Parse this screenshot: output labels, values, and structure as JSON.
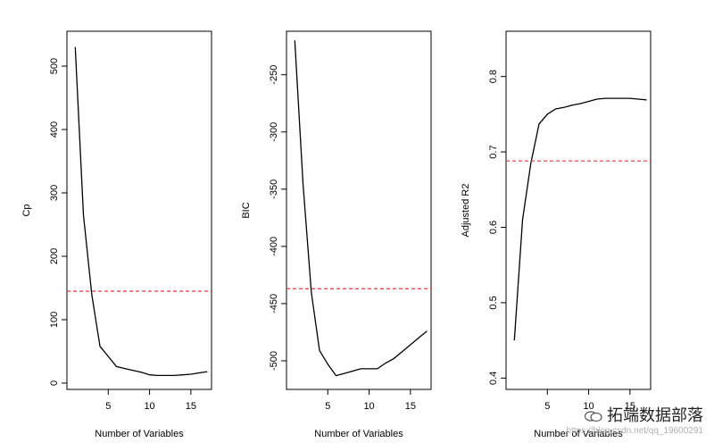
{
  "chart_data": [
    {
      "type": "line",
      "xlabel": "Number of Variables",
      "ylabel": "Cp",
      "xlim": [
        0,
        17.5
      ],
      "ylim": [
        -10,
        555
      ],
      "xticks": [
        5,
        10,
        15
      ],
      "yticks": [
        0,
        100,
        200,
        300,
        400,
        500
      ],
      "x": [
        1,
        2,
        3,
        4,
        5,
        6,
        7,
        8,
        9,
        10,
        11,
        12,
        13,
        14,
        15,
        16,
        17
      ],
      "values": [
        530,
        265,
        140,
        58,
        42,
        26,
        23,
        20,
        17,
        13,
        12,
        12,
        12,
        13,
        14,
        16,
        18
      ],
      "reference_line": {
        "y": 145,
        "style": "dashed",
        "color": "#e8343a"
      },
      "grid": false
    },
    {
      "type": "line",
      "xlabel": "Number of Variables",
      "ylabel": "BIC",
      "xlim": [
        0,
        17.5
      ],
      "ylim": [
        -525,
        -212
      ],
      "xticks": [
        5,
        10,
        15
      ],
      "yticks": [
        -500,
        -450,
        -400,
        -350,
        -300,
        -250
      ],
      "x": [
        1,
        2,
        3,
        4,
        5,
        6,
        7,
        8,
        9,
        10,
        11,
        12,
        13,
        14,
        15,
        16,
        17
      ],
      "values": [
        -220,
        -345,
        -440,
        -491,
        -503,
        -513,
        -511,
        -509,
        -507,
        -507,
        -507,
        -502,
        -498,
        -492,
        -486,
        -480,
        -474
      ],
      "reference_line": {
        "y": -437,
        "style": "dashed",
        "color": "#e8343a"
      },
      "grid": false
    },
    {
      "type": "line",
      "xlabel": "Number of Variables",
      "ylabel": "Adjusted R2",
      "xlim": [
        0,
        17.5
      ],
      "ylim": [
        0.385,
        0.86
      ],
      "xticks": [
        5,
        10,
        15
      ],
      "yticks": [
        0.4,
        0.5,
        0.6,
        0.7,
        0.8
      ],
      "x": [
        1,
        2,
        3,
        4,
        5,
        6,
        7,
        8,
        9,
        10,
        11,
        12,
        13,
        14,
        15,
        16,
        17
      ],
      "values": [
        0.45,
        0.61,
        0.685,
        0.737,
        0.75,
        0.757,
        0.759,
        0.762,
        0.764,
        0.767,
        0.77,
        0.771,
        0.771,
        0.771,
        0.771,
        0.77,
        0.769
      ],
      "reference_line": {
        "y": 0.688,
        "style": "dashed",
        "color": "#e8343a"
      },
      "grid": false
    }
  ],
  "watermark": {
    "brand": "拓端数据部落",
    "url": "https://blog.csdn.net/qq_19600291",
    "icon": "wechat-icon"
  }
}
